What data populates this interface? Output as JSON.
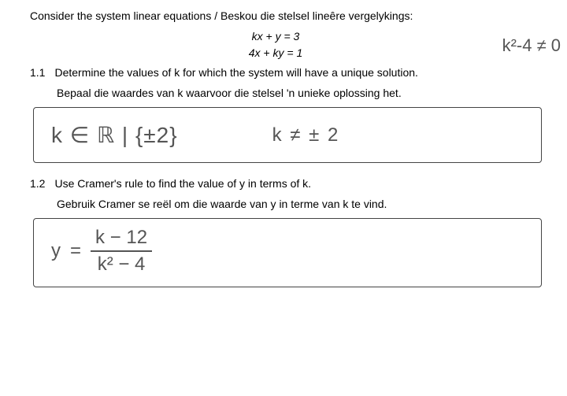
{
  "intro": "Consider the system linear equations / Beskou die stelsel lineêre vergelykings:",
  "eq1": "kx + y = 3",
  "eq2": "4x + ky = 1",
  "topAnnotation": "k²-4 ≠ 0",
  "q11": {
    "num": "1.1",
    "en": "Determine the values of k for which the system will have a unique solution.",
    "af": "Bepaal die waardes van k waarvoor die stelsel 'n unieke oplossing het.",
    "ansA": "k ∈ ℝ | {±2}",
    "ansB": "k ≠ ± 2"
  },
  "q12": {
    "num": "1.2",
    "en": "Use Cramer's rule to find the value of y in terms of k.",
    "af": "Gebruik Cramer se reël om die waarde van y in terme van k te vind.",
    "yLabel": "y",
    "eqSign": "=",
    "fracTop": "k − 12",
    "fracBot": "k² − 4"
  }
}
